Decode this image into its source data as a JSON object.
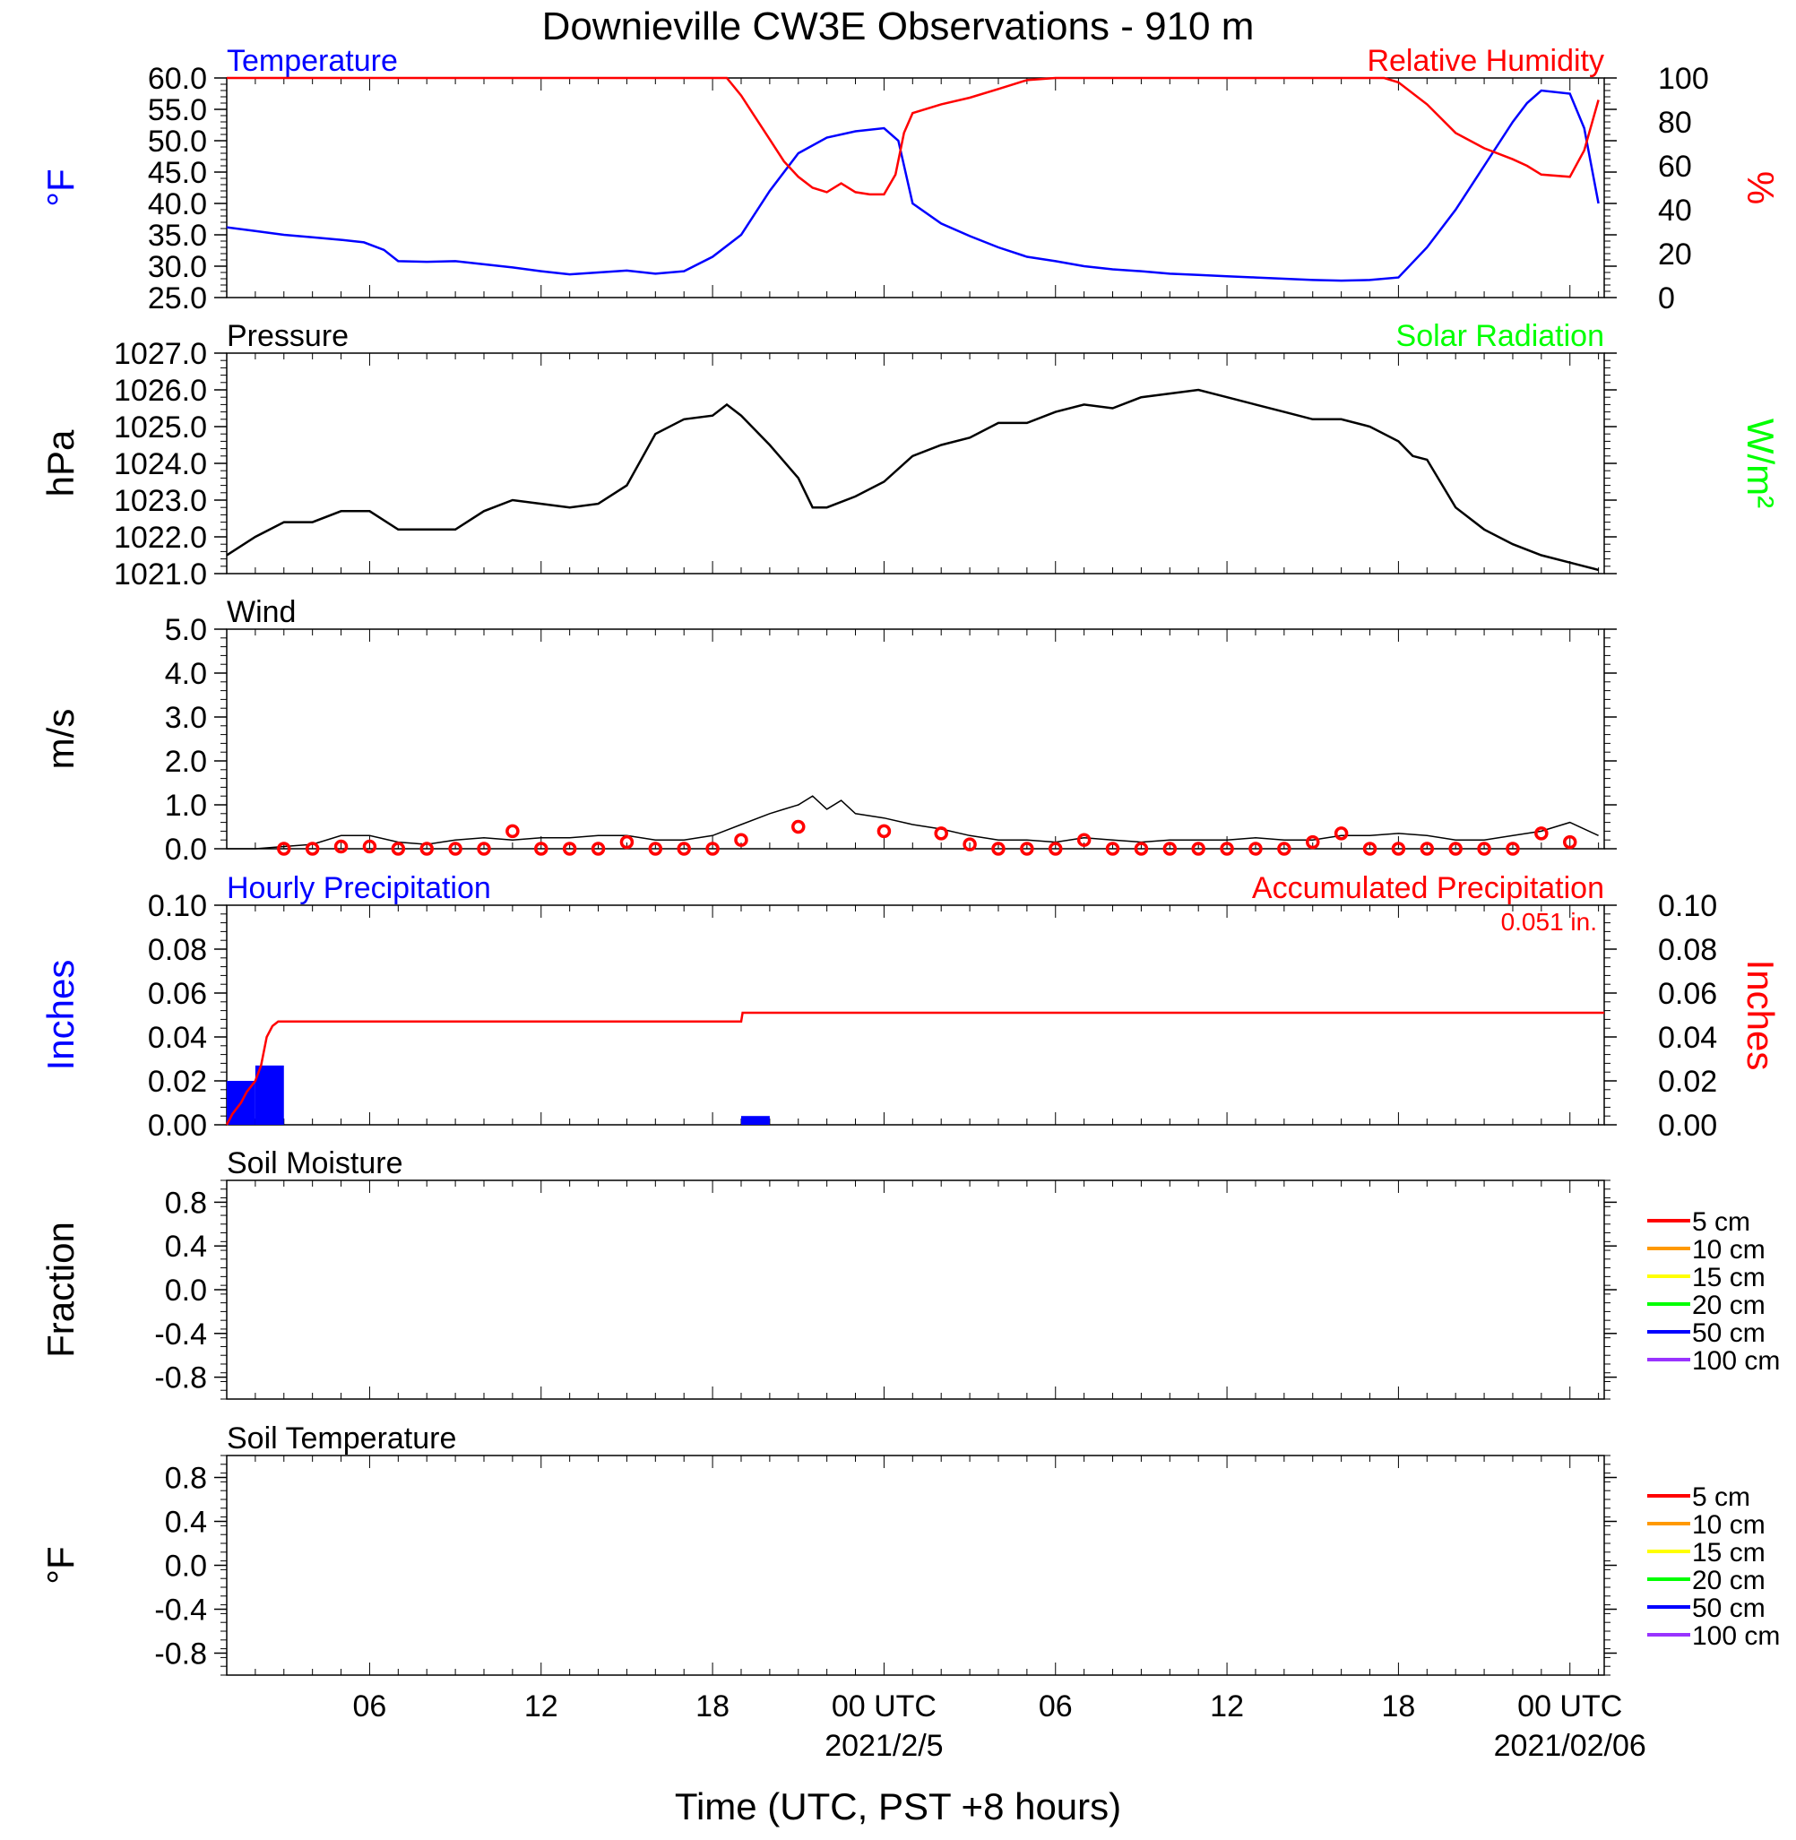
{
  "title": "Downieville CW3E Observations - 910 m",
  "colors": {
    "blue": "#0000ff",
    "red": "#ff0000",
    "green": "#00ff00",
    "black": "#000000",
    "orange": "#ff9900",
    "yellow": "#ffff00",
    "purple": "#9933ff"
  },
  "x_axis": {
    "label": "Time (UTC, PST +8 hours)",
    "tick_labels": [
      "06",
      "12",
      "18",
      "00 UTC",
      "06",
      "12",
      "18",
      "00 UTC"
    ],
    "tick_hours": [
      6,
      12,
      18,
      24,
      30,
      36,
      42,
      48
    ],
    "date_labels": [
      {
        "text": "2021/2/5",
        "hour": 24
      },
      {
        "text": "2021/02/06",
        "hour": 48
      }
    ],
    "range_hours": [
      1,
      49.2
    ]
  },
  "chart_data": [
    {
      "type": "line",
      "panel": "temperature-humidity",
      "left_title": "Temperature",
      "right_title": "Relative Humidity",
      "ylabel_left": "°F",
      "ylabel_right": "%",
      "ylim_left": [
        25,
        60
      ],
      "ylim_right": [
        0,
        100
      ],
      "yticks_left": [
        "25.0",
        "30.0",
        "35.0",
        "40.0",
        "45.0",
        "50.0",
        "55.0",
        "60.0"
      ],
      "yticks_right": [
        "0",
        "20",
        "40",
        "60",
        "80",
        "100"
      ],
      "series": [
        {
          "name": "Temperature",
          "axis": "left",
          "x": [
            1,
            2,
            3,
            4,
            5,
            5.8,
            6.5,
            7,
            8,
            9,
            10,
            11,
            12,
            13,
            14,
            15,
            16,
            17,
            18,
            19,
            20,
            21,
            22,
            23,
            24,
            24.5,
            25,
            26,
            27,
            28,
            29,
            30,
            31,
            32,
            33,
            34,
            35,
            36,
            37,
            38,
            39,
            40,
            41,
            42,
            43,
            44,
            45,
            46,
            46.5,
            47,
            48,
            48.5,
            49
          ],
          "y": [
            36.2,
            35.6,
            35,
            34.6,
            34.2,
            33.8,
            32.6,
            30.8,
            30.7,
            30.8,
            30.3,
            29.8,
            29.2,
            28.7,
            29,
            29.3,
            28.8,
            29.2,
            31.5,
            35,
            42,
            48,
            50.5,
            51.5,
            52,
            50,
            40,
            36.8,
            34.8,
            33,
            31.5,
            30.8,
            30,
            29.5,
            29.2,
            28.8,
            28.6,
            28.4,
            28.2,
            28,
            27.8,
            27.7,
            27.8,
            28.2,
            33,
            39,
            46,
            53,
            56,
            58,
            57.5,
            52,
            40
          ]
        },
        {
          "name": "Relative Humidity",
          "axis": "right",
          "x": [
            1,
            18.5,
            19,
            19.5,
            20,
            20.5,
            21,
            21.5,
            22,
            22.5,
            23,
            23.5,
            24,
            24.4,
            24.7,
            25,
            26,
            27,
            28,
            29,
            30,
            41.5,
            42,
            43,
            44,
            45,
            46,
            46.5,
            47,
            48,
            48.5,
            49
          ],
          "y": [
            100,
            100,
            92,
            82,
            72,
            62,
            55,
            50,
            48,
            52,
            48,
            47,
            47,
            56,
            75,
            84,
            88,
            91,
            95,
            99,
            100,
            100,
            98,
            88,
            75,
            68,
            63,
            60,
            56,
            55,
            67,
            90
          ]
        }
      ]
    },
    {
      "type": "line",
      "panel": "pressure-solar",
      "left_title": "Pressure",
      "right_title": "Solar Radiation",
      "ylabel_left": "hPa",
      "ylabel_right": "W/m²",
      "ylim_left": [
        1021,
        1027
      ],
      "yticks_left": [
        "1021.0",
        "1022.0",
        "1023.0",
        "1024.0",
        "1025.0",
        "1026.0",
        "1027.0"
      ],
      "series": [
        {
          "name": "Pressure",
          "axis": "left",
          "x": [
            1,
            2,
            3,
            4,
            5,
            6,
            7,
            8,
            9,
            10,
            11,
            12,
            13,
            14,
            15,
            16,
            17,
            18,
            18.5,
            19,
            20,
            21,
            21.5,
            22,
            23,
            24,
            25,
            26,
            27,
            28,
            29,
            30,
            31,
            32,
            33,
            34,
            35,
            36,
            37,
            38,
            39,
            40,
            41,
            42,
            42.5,
            43,
            44,
            45,
            46,
            47,
            48,
            48.5,
            49
          ],
          "y": [
            1021.5,
            1022.0,
            1022.4,
            1022.4,
            1022.7,
            1022.7,
            1022.2,
            1022.2,
            1022.2,
            1022.7,
            1023.0,
            1022.9,
            1022.8,
            1022.9,
            1023.4,
            1024.8,
            1025.2,
            1025.3,
            1025.6,
            1025.3,
            1024.5,
            1023.6,
            1022.8,
            1022.8,
            1023.1,
            1023.5,
            1024.2,
            1024.5,
            1024.7,
            1025.1,
            1025.1,
            1025.4,
            1025.6,
            1025.5,
            1025.8,
            1025.9,
            1026.0,
            1025.8,
            1025.6,
            1025.4,
            1025.2,
            1025.2,
            1025.0,
            1024.6,
            1024.2,
            1024.1,
            1022.8,
            1022.2,
            1021.8,
            1021.5,
            1021.3,
            1021.2,
            1021.1
          ]
        }
      ]
    },
    {
      "type": "line",
      "panel": "wind",
      "left_title": "Wind",
      "ylabel_left": "m/s",
      "ylim_left": [
        0,
        5
      ],
      "yticks_left": [
        "0.0",
        "1.0",
        "2.0",
        "3.0",
        "4.0",
        "5.0"
      ],
      "series": [
        {
          "name": "Wind",
          "axis": "left",
          "x": [
            1,
            2,
            3,
            4,
            5,
            6,
            7,
            8,
            9,
            10,
            11,
            12,
            13,
            14,
            15,
            16,
            17,
            18,
            19,
            20,
            20.5,
            21,
            21.5,
            22,
            22.5,
            23,
            24,
            25,
            26,
            27,
            28,
            29,
            30,
            31,
            32,
            33,
            34,
            35,
            36,
            37,
            38,
            39,
            40,
            41,
            42,
            43,
            44,
            45,
            46,
            47,
            48,
            49
          ],
          "y": [
            0,
            0,
            0.05,
            0.1,
            0.3,
            0.3,
            0.15,
            0.1,
            0.2,
            0.25,
            0.2,
            0.25,
            0.25,
            0.3,
            0.3,
            0.2,
            0.2,
            0.3,
            0.55,
            0.8,
            0.9,
            1.0,
            1.2,
            0.9,
            1.1,
            0.8,
            0.7,
            0.55,
            0.45,
            0.3,
            0.2,
            0.2,
            0.15,
            0.25,
            0.2,
            0.15,
            0.2,
            0.2,
            0.2,
            0.25,
            0.2,
            0.2,
            0.3,
            0.3,
            0.35,
            0.3,
            0.2,
            0.2,
            0.3,
            0.4,
            0.6,
            0.3
          ]
        },
        {
          "name": "Hourly wind markers",
          "axis": "left",
          "x": [
            3,
            4,
            5,
            6,
            7,
            8,
            9,
            10,
            11,
            12,
            13,
            14,
            15,
            16,
            17,
            18,
            19,
            21,
            24,
            26,
            27,
            28,
            29,
            30,
            31,
            32,
            33,
            34,
            35,
            36,
            37,
            38,
            39,
            40,
            41,
            42,
            43,
            44,
            45,
            46,
            47,
            48
          ],
          "y": [
            0,
            0,
            0.05,
            0.05,
            0,
            0,
            0,
            0,
            0.4,
            0,
            0,
            0,
            0.15,
            0,
            0,
            0,
            0.2,
            0.5,
            0.4,
            0.35,
            0.1,
            0,
            0,
            0,
            0.2,
            0,
            0,
            0,
            0,
            0,
            0,
            0,
            0.15,
            0.35,
            0,
            0,
            0,
            0,
            0,
            0,
            0.35,
            0.15
          ]
        }
      ]
    },
    {
      "type": "bar",
      "panel": "precipitation",
      "left_title": "Hourly Precipitation",
      "right_title": "Accumulated Precipitation",
      "total_label": "0.051 in.",
      "ylabel_left": "Inches",
      "ylabel_right": "Inches",
      "ylim_left": [
        0,
        0.1
      ],
      "ylim_right": [
        0,
        0.1
      ],
      "yticks_left": [
        "0.00",
        "0.02",
        "0.04",
        "0.06",
        "0.08",
        "0.10"
      ],
      "yticks_right": [
        "0.00",
        "0.02",
        "0.04",
        "0.06",
        "0.08",
        "0.10"
      ],
      "series": [
        {
          "name": "Hourly Precipitation",
          "axis": "left",
          "x": [
            1,
            2,
            19
          ],
          "values": [
            0.02,
            0.027,
            0.004
          ]
        },
        {
          "name": "Accumulated Precipitation",
          "axis": "right",
          "x": [
            1,
            1.2,
            1.5,
            1.7,
            2.0,
            2.2,
            2.4,
            2.6,
            2.8,
            3.0,
            19,
            19.05,
            49.2
          ],
          "y": [
            0,
            0.005,
            0.01,
            0.015,
            0.02,
            0.027,
            0.04,
            0.045,
            0.047,
            0.047,
            0.047,
            0.051,
            0.051
          ]
        }
      ]
    },
    {
      "type": "line",
      "panel": "soil-moisture",
      "left_title": "Soil Moisture",
      "ylabel_left": "Fraction",
      "ylim_left": [
        -1,
        1
      ],
      "yticks_left": [
        "-0.8",
        "-0.4",
        "0.0",
        "0.4",
        "0.8"
      ],
      "legend": [
        {
          "label": "5 cm",
          "color": "#ff0000"
        },
        {
          "label": "10 cm",
          "color": "#ff9900"
        },
        {
          "label": "15 cm",
          "color": "#ffff00"
        },
        {
          "label": "20 cm",
          "color": "#00ff00"
        },
        {
          "label": "50 cm",
          "color": "#0000ff"
        },
        {
          "label": "100 cm",
          "color": "#9933ff"
        }
      ],
      "series": []
    },
    {
      "type": "line",
      "panel": "soil-temperature",
      "left_title": "Soil Temperature",
      "ylabel_left": "°F",
      "ylim_left": [
        -1,
        1
      ],
      "yticks_left": [
        "-0.8",
        "-0.4",
        "0.0",
        "0.4",
        "0.8"
      ],
      "legend": [
        {
          "label": "5 cm",
          "color": "#ff0000"
        },
        {
          "label": "10 cm",
          "color": "#ff9900"
        },
        {
          "label": "15 cm",
          "color": "#ffff00"
        },
        {
          "label": "20 cm",
          "color": "#00ff00"
        },
        {
          "label": "50 cm",
          "color": "#0000ff"
        },
        {
          "label": "100 cm",
          "color": "#9933ff"
        }
      ],
      "series": []
    }
  ]
}
